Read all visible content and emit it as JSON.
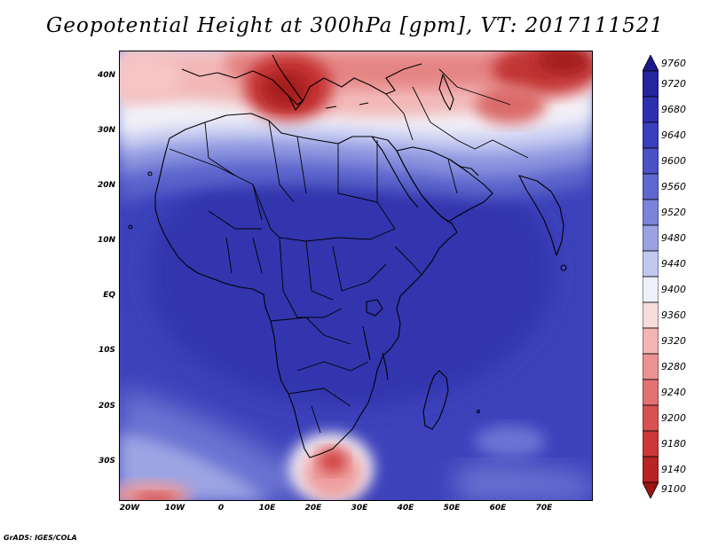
{
  "title": "Geopotential Height at 300hPa [gpm], VT: 2017111521",
  "credit": "GrADS: IGES/COLA",
  "y_axis_labels": [
    "40N",
    "30N",
    "20N",
    "10N",
    "EQ",
    "10S",
    "20S",
    "30S"
  ],
  "x_axis_labels": [
    "20W",
    "10W",
    "0",
    "10E",
    "20E",
    "30E",
    "40E",
    "50E",
    "60E",
    "70E"
  ],
  "colorbar": {
    "labels": [
      "9760",
      "9720",
      "9680",
      "9640",
      "9600",
      "9560",
      "9520",
      "9480",
      "9440",
      "9400",
      "9360",
      "9320",
      "9280",
      "9240",
      "9200",
      "9180",
      "9140",
      "9100"
    ],
    "colors": [
      "#1c1a8a",
      "#25259f",
      "#2e30b0",
      "#3a3fbd",
      "#4a52c6",
      "#5e68cf",
      "#7a84da",
      "#9aa2e4",
      "#c2c7ef",
      "#eef0fa",
      "#f8dcdc",
      "#f4b4b4",
      "#ec9292",
      "#e27272",
      "#d85252",
      "#cc3838",
      "#b82424",
      "#9a1414"
    ]
  },
  "map": {
    "units": "gpm",
    "level": "300hPa",
    "valid_time": "2017111521",
    "extent": {
      "lon_min": -22,
      "lon_max": 80,
      "lat_min": -37,
      "lat_max": 45
    }
  }
}
